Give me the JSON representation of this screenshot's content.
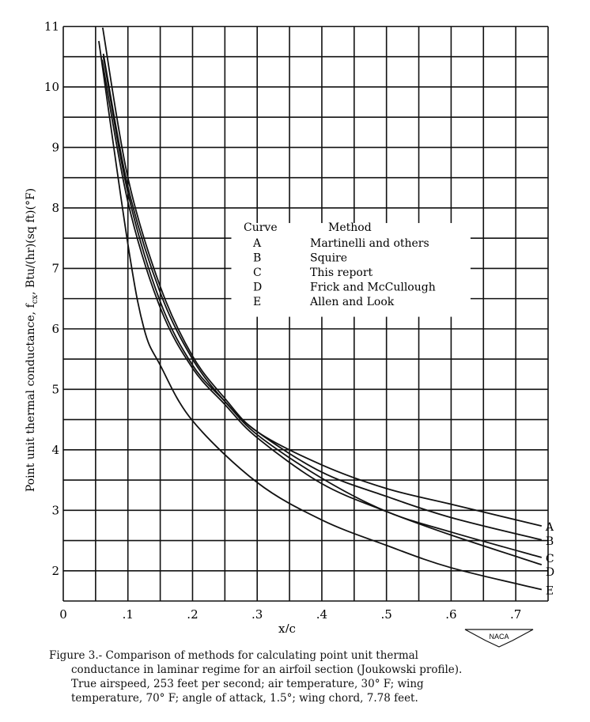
{
  "chart_data": {
    "type": "line",
    "xlabel": "x/c",
    "ylabel": "Point unit thermal conductance, f",
    "ylabel_sub": "cx",
    "ylabel_units": ", Btu/(hr)(sq ft)(°F)",
    "xlim": [
      0,
      0.75
    ],
    "ylim": [
      1.5,
      11
    ],
    "grid": true,
    "x_ticks": [
      0,
      0.1,
      0.2,
      0.3,
      0.4,
      0.5,
      0.6,
      0.7
    ],
    "x_tick_labels": [
      "0",
      ".1",
      ".2",
      ".3",
      ".4",
      ".5",
      ".6",
      ".7"
    ],
    "y_ticks": [
      2,
      3,
      4,
      5,
      6,
      7,
      8,
      9,
      10,
      11
    ],
    "y_tick_labels": [
      "2",
      "3",
      "4",
      "5",
      "6",
      "7",
      "8",
      "9",
      "10",
      "11"
    ],
    "legend": {
      "placement": "center-right",
      "header_curve": "Curve",
      "header_method": "Method",
      "rows": [
        {
          "curve": "A",
          "method": "Martinelli and others"
        },
        {
          "curve": "B",
          "method": "Squire"
        },
        {
          "curve": "C",
          "method": "This report"
        },
        {
          "curve": "D",
          "method": "Frick and McCullough"
        },
        {
          "curve": "E",
          "method": "Allen and Look"
        }
      ]
    },
    "series": [
      {
        "name": "A",
        "x": [
          0.061,
          0.1,
          0.15,
          0.2,
          0.25,
          0.3,
          0.4,
          0.5,
          0.6,
          0.74
        ],
        "y": [
          10.98,
          8.5,
          6.7,
          5.55,
          4.85,
          4.3,
          3.75,
          3.36,
          3.1,
          2.74
        ]
      },
      {
        "name": "B",
        "x": [
          0.062,
          0.1,
          0.15,
          0.2,
          0.25,
          0.3,
          0.4,
          0.5,
          0.6,
          0.74
        ],
        "y": [
          10.55,
          8.35,
          6.6,
          5.5,
          4.8,
          4.3,
          3.63,
          3.23,
          2.88,
          2.51
        ]
      },
      {
        "name": "C",
        "x": [
          0.062,
          0.1,
          0.15,
          0.2,
          0.25,
          0.3,
          0.4,
          0.5,
          0.6,
          0.74
        ],
        "y": [
          10.5,
          8.25,
          6.45,
          5.4,
          4.8,
          4.25,
          3.53,
          2.98,
          2.64,
          2.22
        ]
      },
      {
        "name": "D",
        "x": [
          0.06,
          0.1,
          0.15,
          0.2,
          0.25,
          0.3,
          0.4,
          0.5,
          0.6,
          0.74
        ],
        "y": [
          10.45,
          8.1,
          6.35,
          5.35,
          4.75,
          4.2,
          3.44,
          2.98,
          2.59,
          2.1
        ]
      },
      {
        "name": "E",
        "x": [
          0.055,
          0.1,
          0.125,
          0.15,
          0.2,
          0.3,
          0.4,
          0.5,
          0.6,
          0.74
        ],
        "y": [
          10.76,
          7.4,
          6.0,
          5.4,
          4.48,
          3.46,
          2.84,
          2.42,
          2.05,
          1.69
        ]
      }
    ]
  },
  "logo_text": "NACA",
  "caption": {
    "line1": "Figure 3.-   Comparison of methods for calculating point unit thermal",
    "line2": "conductance in laminar regime for an airfoil section (Joukowski profile).",
    "line3": "True airspeed, 253 feet per second; air temperature, 30° F; wing",
    "line4": "temperature, 70° F; angle of attack, 1.5°; wing chord, 7.78 feet."
  },
  "colors": {
    "ink": "#111111",
    "background": "#ffffff"
  }
}
